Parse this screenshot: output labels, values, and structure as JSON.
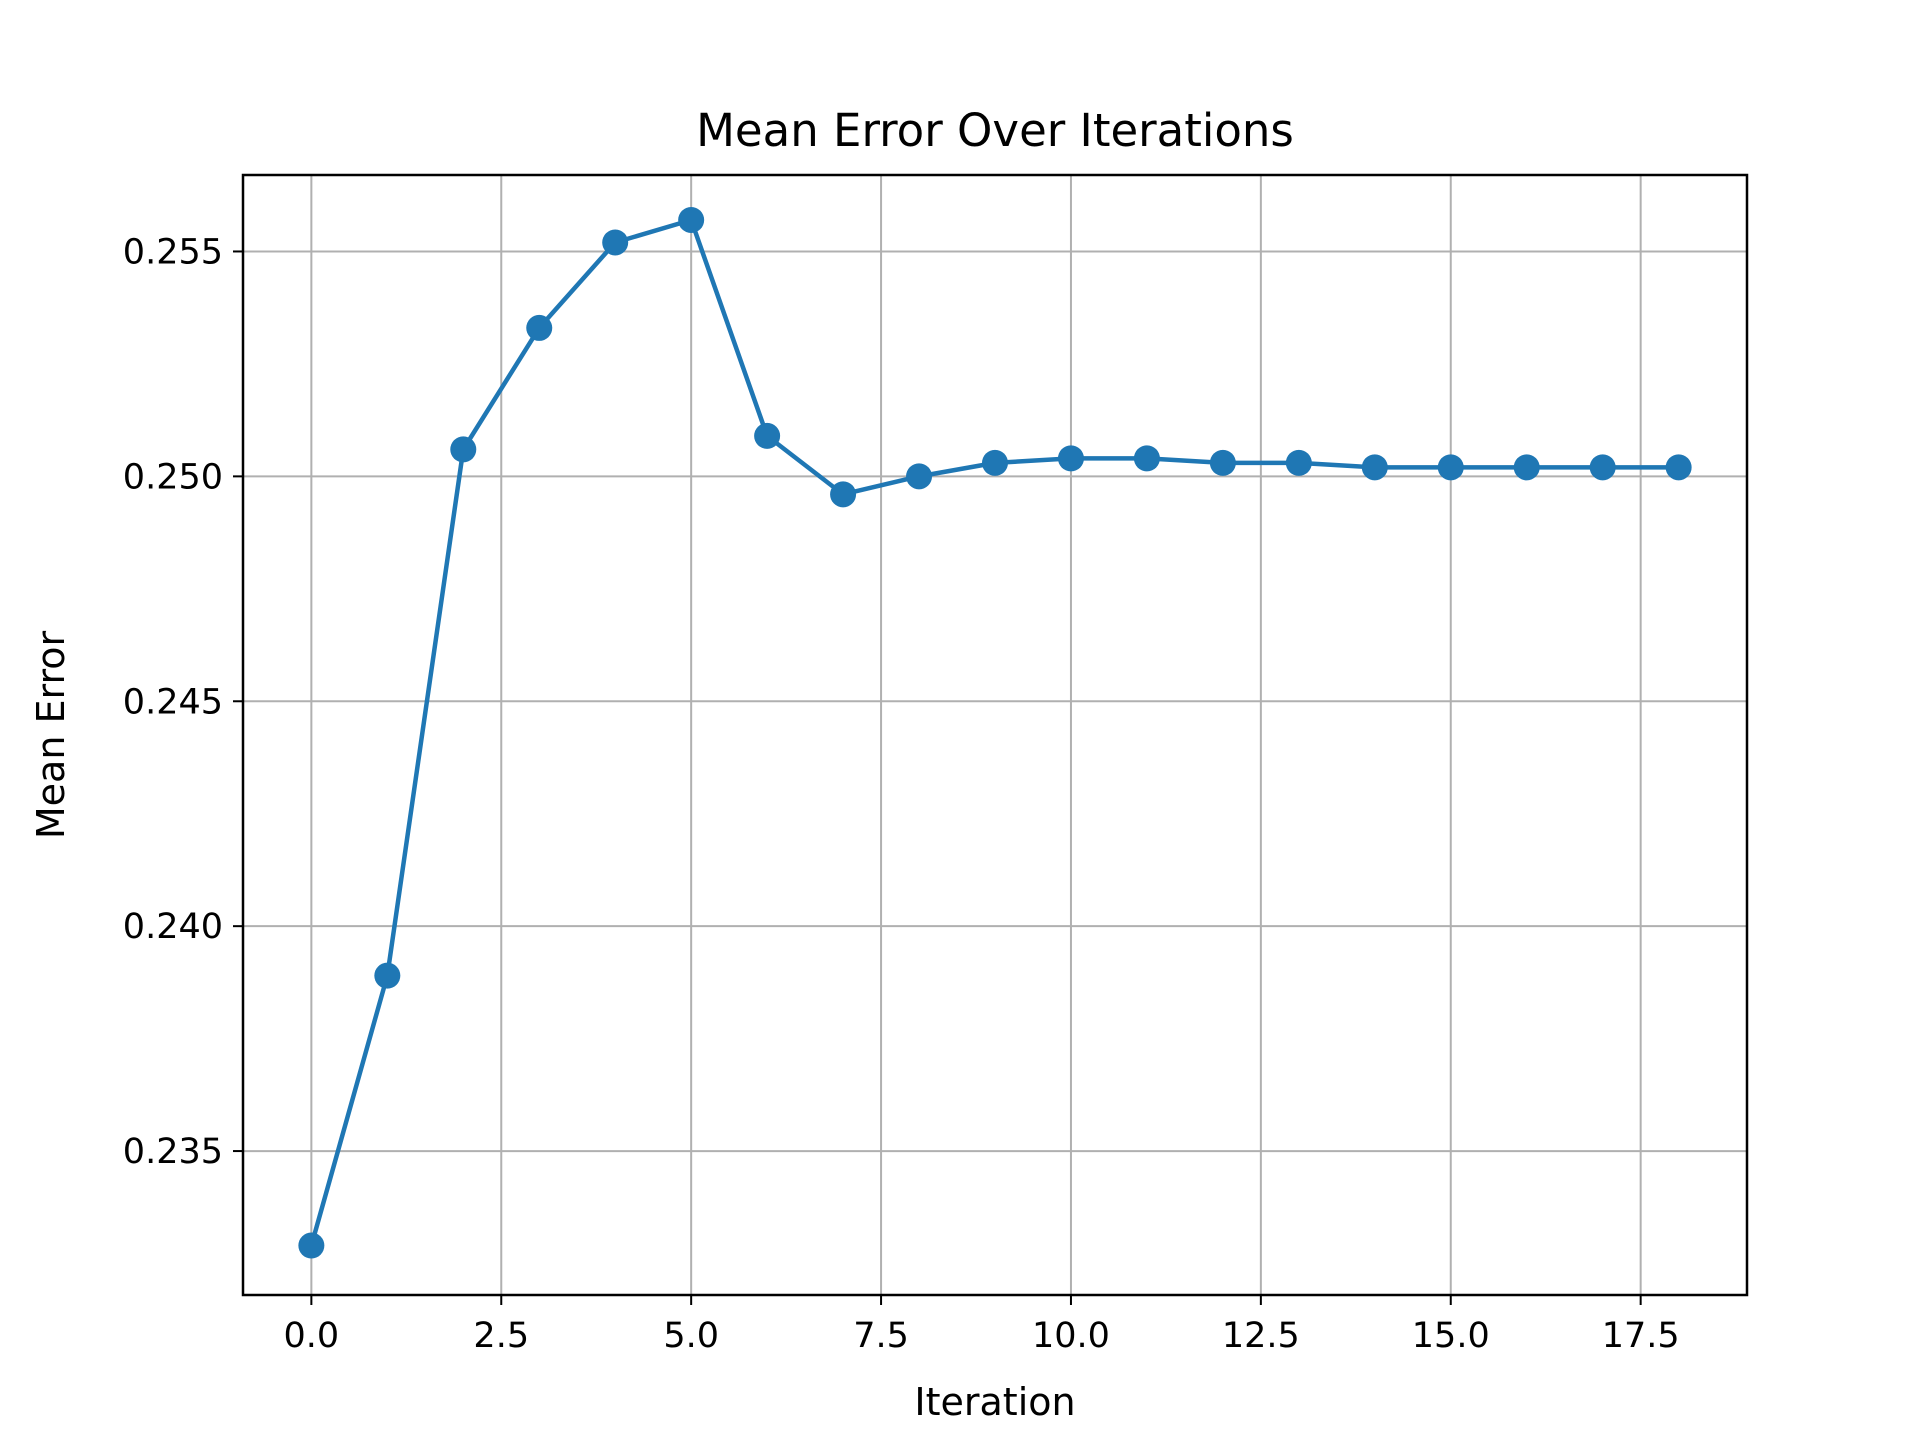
{
  "chart_data": {
    "type": "line",
    "title": "Mean Error Over Iterations",
    "xlabel": "Iteration",
    "ylabel": "Mean Error",
    "xlim": [
      -0.9,
      18.9
    ],
    "ylim": [
      0.2318,
      0.2567
    ],
    "xticks": [
      0.0,
      2.5,
      5.0,
      7.5,
      10.0,
      12.5,
      15.0,
      17.5
    ],
    "xtick_labels": [
      "0.0",
      "2.5",
      "5.0",
      "7.5",
      "10.0",
      "12.5",
      "15.0",
      "17.5"
    ],
    "yticks": [
      0.235,
      0.24,
      0.245,
      0.25,
      0.255
    ],
    "ytick_labels": [
      "0.235",
      "0.240",
      "0.245",
      "0.250",
      "0.255"
    ],
    "grid": true,
    "marker": "circle",
    "color": "#1f77b4",
    "grid_color": "#b0b0b0",
    "series": [
      {
        "x": [
          0,
          1,
          2,
          3,
          4,
          5,
          6,
          7,
          8,
          9,
          10,
          11,
          12,
          13,
          14,
          15,
          16,
          17,
          18
        ],
        "values": [
          0.2329,
          0.2389,
          0.2506,
          0.2533,
          0.2552,
          0.2557,
          0.2509,
          0.2496,
          0.25,
          0.2503,
          0.2504,
          0.2504,
          0.2503,
          0.2503,
          0.2502,
          0.2502,
          0.2502,
          0.2502,
          0.2502
        ]
      }
    ]
  }
}
